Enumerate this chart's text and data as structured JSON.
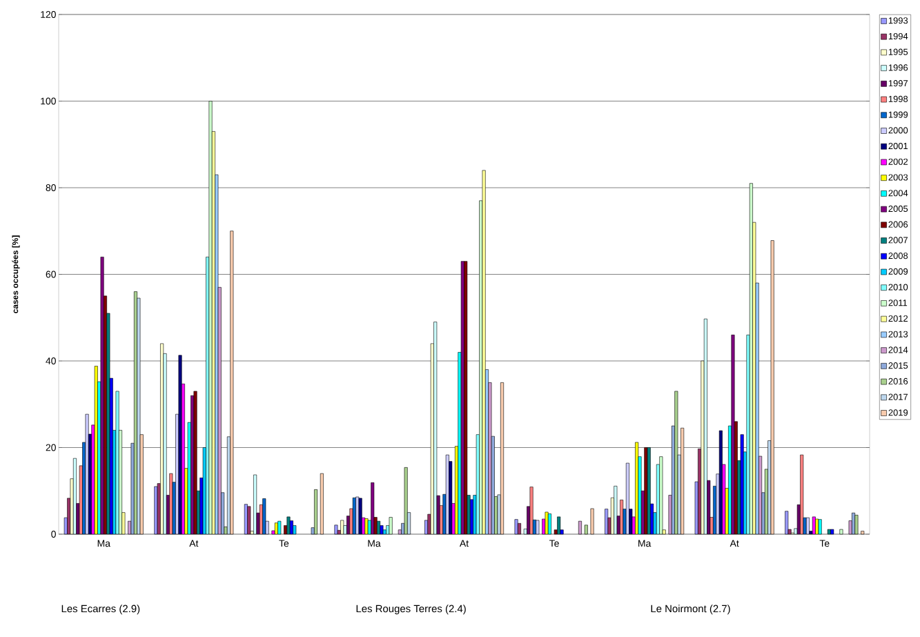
{
  "chart_data": {
    "type": "bar",
    "ylabel": "cases occupées [%]",
    "categories": [
      "Ma",
      "At",
      "Te",
      "Ma",
      "At",
      "Te",
      "Ma",
      "At",
      "Te"
    ],
    "ylim": [
      0,
      120
    ],
    "yticks": [
      0,
      20,
      40,
      60,
      80,
      100,
      120
    ],
    "grid": "y",
    "legend": "right",
    "annotations": [
      "Les Ecarres (2.9)",
      "Les Rouges Terres (2.4)",
      "Le Noirmont (2.7)"
    ],
    "series": [
      {
        "name": "1993",
        "color": "#9999ff",
        "values": [
          3.8,
          11,
          6.9,
          2.1,
          3.2,
          3.4,
          5.8,
          12.1,
          5.3
        ]
      },
      {
        "name": "1994",
        "color": "#993366",
        "values": [
          8.3,
          11.7,
          6.4,
          0.9,
          4.6,
          2.5,
          3.8,
          19.7,
          1.1
        ]
      },
      {
        "name": "1995",
        "color": "#ffffcc",
        "values": [
          12.8,
          44,
          0.7,
          3.2,
          44,
          null,
          8.4,
          40,
          0.3
        ]
      },
      {
        "name": "1996",
        "color": "#ccffff",
        "values": [
          17.5,
          41.7,
          13.7,
          2.0,
          49,
          1.2,
          11.1,
          49.7,
          1.3
        ]
      },
      {
        "name": "1997",
        "color": "#660066",
        "values": [
          7.1,
          9,
          4.9,
          4.2,
          8.9,
          6.4,
          4.2,
          12.4,
          6.8
        ]
      },
      {
        "name": "1998",
        "color": "#ff8080",
        "values": [
          15.8,
          14,
          6.8,
          5.9,
          6.6,
          10.9,
          7.9,
          3.9,
          18.3
        ]
      },
      {
        "name": "1999",
        "color": "#0066cc",
        "values": [
          21.2,
          12,
          8.2,
          8.4,
          9.2,
          3.3,
          5.8,
          11.1,
          3.8
        ]
      },
      {
        "name": "2000",
        "color": "#ccccff",
        "values": [
          27.7,
          27.7,
          3.0,
          8.6,
          18.3,
          3.2,
          16.4,
          13.9,
          3.8
        ]
      },
      {
        "name": "2001",
        "color": "#000080",
        "values": [
          23.1,
          41.3,
          null,
          8.3,
          16.8,
          null,
          5.8,
          23.9,
          0.7
        ]
      },
      {
        "name": "2002",
        "color": "#ff00ff",
        "values": [
          25.2,
          34.7,
          0.8,
          3.8,
          7.1,
          3.5,
          4.0,
          16.1,
          4.0
        ]
      },
      {
        "name": "2003",
        "color": "#ffff00",
        "values": [
          38.8,
          15.2,
          2.6,
          3.6,
          20.3,
          5.1,
          21.2,
          10.6,
          3.5
        ]
      },
      {
        "name": "2004",
        "color": "#00ffff",
        "values": [
          35.2,
          25.8,
          3.0,
          3.2,
          42,
          4.7,
          17.9,
          25,
          3.4
        ]
      },
      {
        "name": "2005",
        "color": "#800080",
        "values": [
          64,
          32,
          null,
          11.9,
          63,
          null,
          10.0,
          46,
          null
        ]
      },
      {
        "name": "2006",
        "color": "#800000",
        "values": [
          55,
          33,
          2.0,
          3.9,
          63,
          1.0,
          20,
          26,
          null
        ]
      },
      {
        "name": "2007",
        "color": "#008080",
        "values": [
          51,
          10,
          4.0,
          3.0,
          9.0,
          4.0,
          20,
          17,
          1.1
        ]
      },
      {
        "name": "2008",
        "color": "#0000ff",
        "values": [
          36,
          13,
          3.1,
          2.0,
          8.0,
          1.0,
          7.0,
          23,
          1.1
        ]
      },
      {
        "name": "2009",
        "color": "#00ccff",
        "values": [
          24,
          20,
          2.0,
          1.0,
          9.0,
          null,
          5.0,
          19,
          null
        ]
      },
      {
        "name": "2010",
        "color": "#80ffff",
        "values": [
          33,
          64,
          null,
          2.0,
          23,
          null,
          16.1,
          46,
          null
        ]
      },
      {
        "name": "2011",
        "color": "#ccffcc",
        "values": [
          24,
          100,
          null,
          3.9,
          77,
          null,
          17.9,
          81,
          1.1
        ]
      },
      {
        "name": "2012",
        "color": "#ffff99",
        "values": [
          5,
          93,
          null,
          null,
          84,
          null,
          1.0,
          72,
          null
        ]
      },
      {
        "name": "2013",
        "color": "#99ccff",
        "values": [
          null,
          83,
          null,
          null,
          38,
          null,
          null,
          58,
          null
        ]
      },
      {
        "name": "2014",
        "color": "#cc99cc",
        "values": [
          3,
          57,
          null,
          1.0,
          35,
          3.0,
          9.0,
          18,
          3.1
        ]
      },
      {
        "name": "2015",
        "color": "#8ea9db",
        "values": [
          21,
          9.6,
          1.5,
          2.5,
          22.6,
          null,
          25,
          9.6,
          4.9
        ]
      },
      {
        "name": "2016",
        "color": "#a9d08e",
        "values": [
          56,
          1.7,
          10.3,
          15.4,
          8.7,
          2.1,
          33,
          15,
          4.4
        ]
      },
      {
        "name": "2017",
        "color": "#bdd7ee",
        "values": [
          54.5,
          22.5,
          null,
          5.0,
          9.1,
          null,
          18.3,
          21.6,
          null
        ]
      },
      {
        "name": "2019",
        "color": "#f8cbad",
        "values": [
          23,
          70,
          14,
          null,
          35,
          5.9,
          24.5,
          67.8,
          0.7
        ]
      }
    ]
  }
}
